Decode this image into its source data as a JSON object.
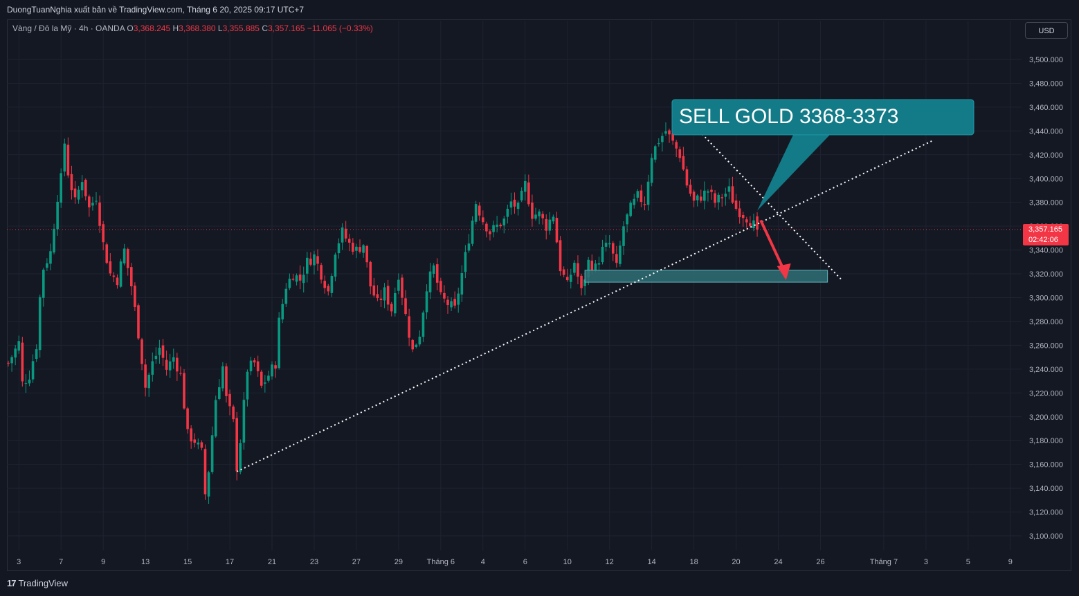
{
  "header": {
    "publisher_text": "DuongTuanNghia xuất bản về TradingView.com, Tháng 6 20, 2025 09:17 UTC+7"
  },
  "legend": {
    "symbol": "Vàng / Đô la Mỹ · 4h · OANDA",
    "o_label": "O",
    "o_value": "3,368.245",
    "h_label": "H",
    "h_value": "3,368.380",
    "l_label": "L",
    "l_value": "3,355.885",
    "c_label": "C",
    "c_value": "3,357.165",
    "change": "−11.065 (−0.33%)"
  },
  "currency_button": "USD",
  "price_tag": {
    "price": "3,357.165",
    "countdown": "02:42:06"
  },
  "annotation": {
    "callout_text": "SELL GOLD 3368-3373"
  },
  "footer": {
    "logo_text": "TradingView",
    "logo_mark": "17"
  },
  "colors": {
    "up": "#089981",
    "down": "#f23645",
    "callout": "#137a87",
    "zone": "#2f6e74",
    "arrow": "#f23645"
  },
  "chart_data": {
    "type": "candlestick",
    "ylim": [
      3090,
      3510
    ],
    "y_ticks": [
      "3,500.000",
      "3,480.000",
      "3,460.000",
      "3,440.000",
      "3,420.000",
      "3,400.000",
      "3,380.000",
      "3,360.000",
      "3,340.000",
      "3,320.000",
      "3,300.000",
      "3,280.000",
      "3,260.000",
      "3,240.000",
      "3,220.000",
      "3,200.000",
      "3,180.000",
      "3,160.000",
      "3,140.000",
      "3,120.000",
      "3,100.000"
    ],
    "y_tick_values": [
      3500,
      3480,
      3460,
      3440,
      3420,
      3400,
      3380,
      3360,
      3340,
      3320,
      3300,
      3280,
      3260,
      3240,
      3220,
      3200,
      3180,
      3160,
      3140,
      3120,
      3100
    ],
    "x_ticks": [
      {
        "label": "3",
        "bar": 3
      },
      {
        "label": "7",
        "bar": 15
      },
      {
        "label": "9",
        "bar": 27
      },
      {
        "label": "13",
        "bar": 39
      },
      {
        "label": "15",
        "bar": 51
      },
      {
        "label": "17",
        "bar": 63
      },
      {
        "label": "21",
        "bar": 75
      },
      {
        "label": "23",
        "bar": 87
      },
      {
        "label": "27",
        "bar": 99
      },
      {
        "label": "29",
        "bar": 111
      },
      {
        "label": "Tháng 6",
        "bar": 123
      },
      {
        "label": "4",
        "bar": 135
      },
      {
        "label": "6",
        "bar": 147
      },
      {
        "label": "10",
        "bar": 159
      },
      {
        "label": "12",
        "bar": 171
      },
      {
        "label": "14",
        "bar": 183
      },
      {
        "label": "18",
        "bar": 195
      },
      {
        "label": "20",
        "bar": 207
      },
      {
        "label": "24",
        "bar": 219
      },
      {
        "label": "26",
        "bar": 231
      },
      {
        "label": "Tháng 7",
        "bar": 249
      },
      {
        "label": "3",
        "bar": 261
      },
      {
        "label": "5",
        "bar": 273
      },
      {
        "label": "9",
        "bar": 285
      }
    ],
    "total_bar_slots": 295,
    "waypoints": [
      [
        0,
        3245
      ],
      [
        3,
        3262
      ],
      [
        4,
        3228
      ],
      [
        6,
        3235
      ],
      [
        8,
        3260
      ],
      [
        9,
        3300
      ],
      [
        10,
        3325
      ],
      [
        12,
        3338
      ],
      [
        14,
        3385
      ],
      [
        15,
        3400
      ],
      [
        16,
        3430
      ],
      [
        17,
        3405
      ],
      [
        19,
        3380
      ],
      [
        21,
        3400
      ],
      [
        23,
        3375
      ],
      [
        25,
        3385
      ],
      [
        27,
        3345
      ],
      [
        29,
        3320
      ],
      [
        31,
        3315
      ],
      [
        33,
        3340
      ],
      [
        35,
        3310
      ],
      [
        37,
        3270
      ],
      [
        39,
        3225
      ],
      [
        41,
        3245
      ],
      [
        43,
        3258
      ],
      [
        45,
        3240
      ],
      [
        47,
        3250
      ],
      [
        49,
        3235
      ],
      [
        51,
        3185
      ],
      [
        53,
        3180
      ],
      [
        55,
        3170
      ],
      [
        56,
        3135
      ],
      [
        57,
        3155
      ],
      [
        58,
        3185
      ],
      [
        59,
        3215
      ],
      [
        61,
        3242
      ],
      [
        62,
        3215
      ],
      [
        64,
        3195
      ],
      [
        65,
        3158
      ],
      [
        66,
        3180
      ],
      [
        67,
        3210
      ],
      [
        68,
        3240
      ],
      [
        70,
        3245
      ],
      [
        72,
        3225
      ],
      [
        74,
        3235
      ],
      [
        76,
        3245
      ],
      [
        77,
        3280
      ],
      [
        79,
        3310
      ],
      [
        81,
        3320
      ],
      [
        83,
        3315
      ],
      [
        85,
        3330
      ],
      [
        87,
        3335
      ],
      [
        89,
        3320
      ],
      [
        91,
        3305
      ],
      [
        93,
        3340
      ],
      [
        95,
        3355
      ],
      [
        97,
        3345
      ],
      [
        99,
        3340
      ],
      [
        101,
        3345
      ],
      [
        103,
        3310
      ],
      [
        105,
        3295
      ],
      [
        107,
        3305
      ],
      [
        109,
        3290
      ],
      [
        111,
        3320
      ],
      [
        113,
        3285
      ],
      [
        115,
        3255
      ],
      [
        117,
        3270
      ],
      [
        119,
        3310
      ],
      [
        121,
        3325
      ],
      [
        123,
        3300
      ],
      [
        125,
        3295
      ],
      [
        127,
        3290
      ],
      [
        129,
        3320
      ],
      [
        131,
        3350
      ],
      [
        133,
        3380
      ],
      [
        135,
        3365
      ],
      [
        137,
        3355
      ],
      [
        139,
        3360
      ],
      [
        141,
        3365
      ],
      [
        143,
        3380
      ],
      [
        145,
        3375
      ],
      [
        147,
        3395
      ],
      [
        149,
        3370
      ],
      [
        151,
        3370
      ],
      [
        153,
        3360
      ],
      [
        155,
        3370
      ],
      [
        157,
        3325
      ],
      [
        159,
        3310
      ],
      [
        161,
        3330
      ],
      [
        163,
        3305
      ],
      [
        165,
        3330
      ],
      [
        167,
        3325
      ],
      [
        169,
        3340
      ],
      [
        171,
        3345
      ],
      [
        173,
        3325
      ],
      [
        175,
        3360
      ],
      [
        177,
        3375
      ],
      [
        179,
        3385
      ],
      [
        181,
        3380
      ],
      [
        183,
        3420
      ],
      [
        185,
        3432
      ],
      [
        187,
        3440
      ],
      [
        189,
        3430
      ],
      [
        191,
        3420
      ],
      [
        193,
        3395
      ],
      [
        195,
        3380
      ],
      [
        197,
        3385
      ],
      [
        199,
        3390
      ],
      [
        201,
        3380
      ],
      [
        203,
        3385
      ],
      [
        205,
        3390
      ],
      [
        207,
        3375
      ],
      [
        209,
        3370
      ],
      [
        211,
        3365
      ],
      [
        213,
        3357
      ]
    ],
    "annotations": {
      "support_trendline": {
        "from": [
          65,
          3154
        ],
        "to": [
          263,
          3432
        ]
      },
      "resistance_trendline": {
        "from": [
          190,
          3460
        ],
        "to": [
          237,
          3315
        ]
      },
      "target_zone": {
        "bar_start": 164,
        "bar_end": 233,
        "price_low": 3313,
        "price_high": 3323
      },
      "sell_arrow": {
        "from": [
          214,
          3365
        ],
        "to": [
          221,
          3316
        ]
      },
      "callout_pointer": [
        213,
        3373
      ],
      "current_price": 3357.165
    }
  }
}
